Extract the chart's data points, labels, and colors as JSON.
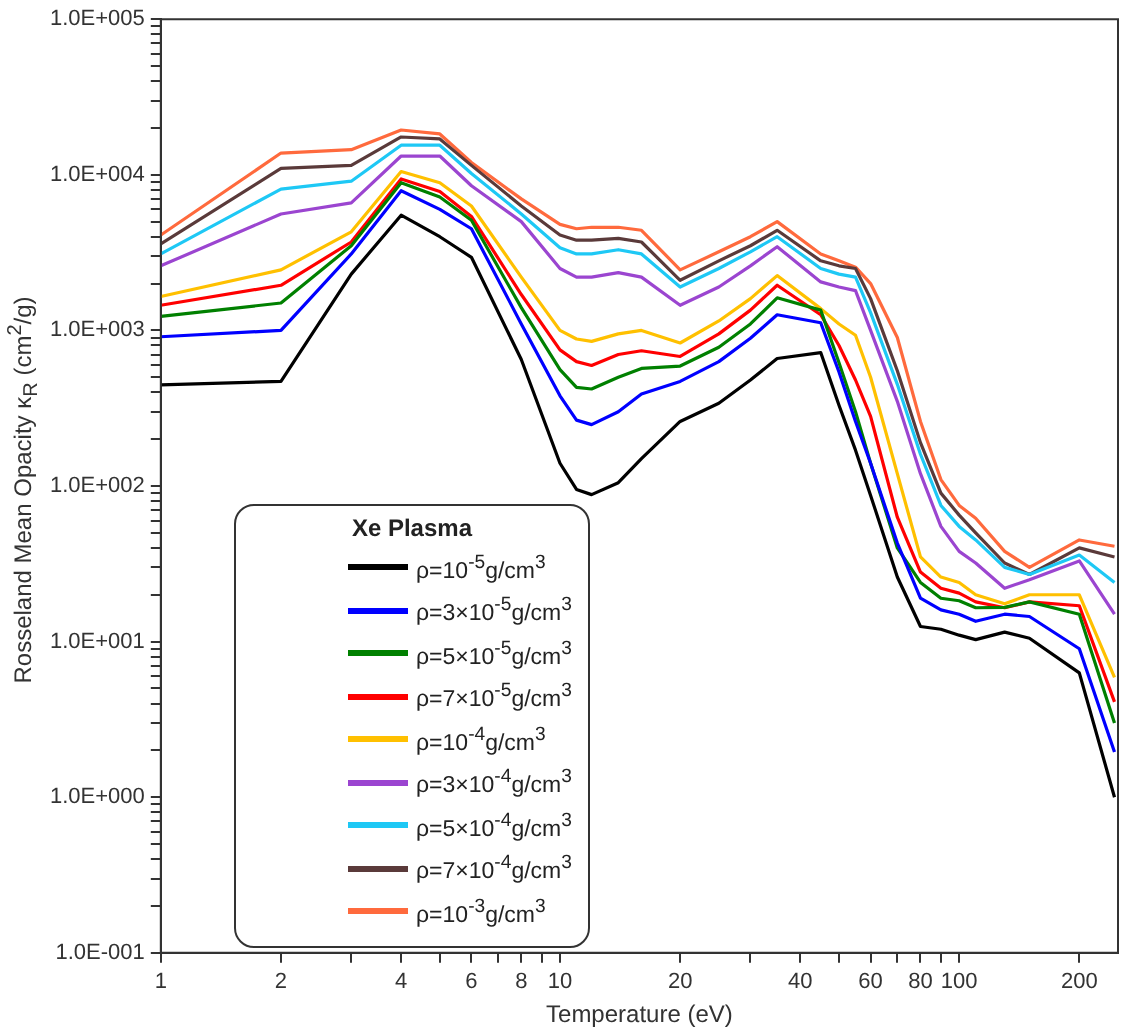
{
  "chart_data": {
    "type": "line",
    "xlabel": "Temperature (eV)",
    "ylabel": "Rosseland Mean Opacity κ$_{R}$ (cm$^{2}$/g)",
    "legend_title": "Xe Plasma",
    "legend": "bottom left",
    "log": "xy",
    "grid": false,
    "marker": "none",
    "line_style": "solid",
    "xlim": [
      1,
      250
    ],
    "ylim": [
      0.1,
      100000
    ],
    "xticks": [
      1,
      2,
      {
        "value": 3,
        "label": null
      },
      4,
      {
        "value": 5,
        "label": null
      },
      6,
      {
        "value": 7,
        "label": null
      },
      8,
      {
        "value": 9,
        "label": null
      },
      10,
      20,
      {
        "value": 30,
        "label": null
      },
      40,
      {
        "value": 50,
        "label": null
      },
      60,
      {
        "value": 70,
        "label": null
      },
      80,
      {
        "value": 90,
        "label": null
      },
      100,
      200
    ],
    "yticks": [
      {
        "value": 0.1,
        "label": "1.0E-001"
      },
      {
        "value": 0.2,
        "label": null
      },
      {
        "value": 0.3,
        "label": null
      },
      {
        "value": 0.4,
        "label": null
      },
      {
        "value": 0.5,
        "label": null
      },
      {
        "value": 0.6,
        "label": null
      },
      {
        "value": 0.7,
        "label": null
      },
      {
        "value": 0.8,
        "label": null
      },
      {
        "value": 0.9,
        "label": null
      },
      {
        "value": 1,
        "label": "1.0E+000"
      },
      {
        "value": 2,
        "label": null
      },
      {
        "value": 3,
        "label": null
      },
      {
        "value": 4,
        "label": null
      },
      {
        "value": 5,
        "label": null
      },
      {
        "value": 6,
        "label": null
      },
      {
        "value": 7,
        "label": null
      },
      {
        "value": 8,
        "label": null
      },
      {
        "value": 9,
        "label": null
      },
      {
        "value": 10,
        "label": "1.0E+001"
      },
      {
        "value": 20,
        "label": null
      },
      {
        "value": 30,
        "label": null
      },
      {
        "value": 40,
        "label": null
      },
      {
        "value": 50,
        "label": null
      },
      {
        "value": 60,
        "label": null
      },
      {
        "value": 70,
        "label": null
      },
      {
        "value": 80,
        "label": null
      },
      {
        "value": 90,
        "label": null
      },
      {
        "value": 100,
        "label": "1.0E+002"
      },
      {
        "value": 200,
        "label": null
      },
      {
        "value": 300,
        "label": null
      },
      {
        "value": 400,
        "label": null
      },
      {
        "value": 500,
        "label": null
      },
      {
        "value": 600,
        "label": null
      },
      {
        "value": 700,
        "label": null
      },
      {
        "value": 800,
        "label": null
      },
      {
        "value": 900,
        "label": null
      },
      {
        "value": 1000,
        "label": "1.0E+003"
      },
      {
        "value": 2000,
        "label": null
      },
      {
        "value": 3000,
        "label": null
      },
      {
        "value": 4000,
        "label": null
      },
      {
        "value": 5000,
        "label": null
      },
      {
        "value": 6000,
        "label": null
      },
      {
        "value": 7000,
        "label": null
      },
      {
        "value": 8000,
        "label": null
      },
      {
        "value": 9000,
        "label": null
      },
      {
        "value": 10000,
        "label": "1.0E+004"
      },
      {
        "value": 20000,
        "label": null
      },
      {
        "value": 30000,
        "label": null
      },
      {
        "value": 40000,
        "label": null
      },
      {
        "value": 50000,
        "label": null
      },
      {
        "value": 60000,
        "label": null
      },
      {
        "value": 70000,
        "label": null
      },
      {
        "value": 80000,
        "label": null
      },
      {
        "value": 90000,
        "label": null
      },
      {
        "value": 100000,
        "label": "1.0E+005"
      }
    ],
    "x": [
      1,
      2,
      3,
      4,
      5,
      6,
      8,
      10,
      11,
      12,
      14,
      16,
      20,
      25,
      30,
      35,
      45,
      50,
      55,
      60,
      70,
      80,
      90,
      100,
      110,
      130,
      150,
      200,
      245
    ],
    "series": [
      {
        "name": "ρ=10$^{-5}$g/cm$^{3}$",
        "color": "#000000",
        "values": [
          446,
          470,
          2300,
          5500,
          4000,
          2950,
          650,
          140,
          95,
          88,
          105,
          150,
          260,
          340,
          480,
          660,
          720,
          330,
          170,
          87,
          26,
          12.5,
          12,
          11,
          10.3,
          11.5,
          10.5,
          6.3,
          1.0
        ]
      },
      {
        "name": "ρ=3×10$^{-5}$g/cm$^{3}$",
        "color": "#0000ff",
        "values": [
          910,
          1000,
          3100,
          7900,
          6000,
          4500,
          1100,
          380,
          265,
          248,
          300,
          390,
          470,
          630,
          890,
          1260,
          1120,
          540,
          260,
          140,
          43,
          19,
          16,
          15,
          13.5,
          15,
          14.5,
          9,
          1.95
        ]
      },
      {
        "name": "ρ=5×10$^{-5}$g/cm$^{3}$",
        "color": "#008000",
        "values": [
          1230,
          1500,
          3500,
          8900,
          7200,
          5100,
          1400,
          560,
          430,
          420,
          500,
          570,
          590,
          780,
          1100,
          1620,
          1350,
          620,
          300,
          140,
          40,
          24,
          19,
          18.3,
          16.5,
          16.6,
          18,
          15,
          3
        ]
      },
      {
        "name": "ρ=7×10$^{-5}$g/cm$^{3}$",
        "color": "#ff0000",
        "values": [
          1450,
          1950,
          3700,
          9400,
          7800,
          5400,
          1700,
          750,
          630,
          595,
          700,
          740,
          680,
          950,
          1350,
          1950,
          1260,
          800,
          480,
          280,
          63,
          28,
          22,
          20.5,
          18,
          16.5,
          18,
          17,
          4.1
        ]
      },
      {
        "name": "ρ=10$^{-4}$g/cm$^{3}$",
        "color": "#ffc000",
        "values": [
          1650,
          2450,
          4300,
          10500,
          8900,
          6300,
          2200,
          1000,
          880,
          850,
          950,
          1000,
          830,
          1150,
          1600,
          2250,
          1380,
          1100,
          930,
          500,
          120,
          35,
          26,
          24,
          20,
          17.5,
          20,
          20,
          5.9
        ]
      },
      {
        "name": "ρ=3×10$^{-4}$g/cm$^{3}$",
        "color": "#9b45d0",
        "values": [
          2600,
          5600,
          6600,
          13200,
          13200,
          8500,
          5000,
          2500,
          2200,
          2200,
          2350,
          2200,
          1450,
          1900,
          2600,
          3450,
          2050,
          1900,
          1800,
          1000,
          350,
          120,
          55,
          38,
          32,
          22,
          25,
          33,
          15
        ]
      },
      {
        "name": "ρ=5×10$^{-4}$g/cm$^{3}$",
        "color": "#1ec8f5",
        "values": [
          3100,
          8100,
          9100,
          15500,
          15500,
          10200,
          5600,
          3400,
          3100,
          3100,
          3300,
          3100,
          1900,
          2500,
          3200,
          4000,
          2500,
          2300,
          2200,
          1300,
          450,
          160,
          75,
          55,
          45,
          30,
          27,
          36,
          24
        ]
      },
      {
        "name": "ρ=7×10$^{-4}$g/cm$^{3}$",
        "color": "#5a3a3a",
        "values": [
          3600,
          11000,
          11500,
          17500,
          17000,
          11500,
          6300,
          4100,
          3800,
          3800,
          3900,
          3700,
          2100,
          2800,
          3500,
          4400,
          2800,
          2600,
          2500,
          1600,
          550,
          190,
          90,
          65,
          50,
          32,
          27,
          40,
          35
        ]
      },
      {
        "name": "ρ=10$^{-3}$g/cm$^{3}$",
        "color": "#ff6a3d",
        "values": [
          4100,
          13800,
          14500,
          19400,
          18300,
          12000,
          7000,
          4800,
          4500,
          4600,
          4600,
          4400,
          2450,
          3200,
          4000,
          5000,
          3100,
          2800,
          2550,
          2000,
          900,
          260,
          110,
          75,
          62,
          38,
          30,
          45,
          41
        ]
      }
    ]
  }
}
